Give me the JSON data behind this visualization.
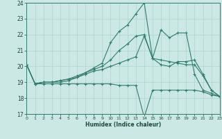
{
  "xlabel": "Humidex (Indice chaleur)",
  "xlim": [
    0,
    23
  ],
  "ylim": [
    17,
    24
  ],
  "yticks": [
    17,
    18,
    19,
    20,
    21,
    22,
    23,
    24
  ],
  "xticks": [
    0,
    1,
    2,
    3,
    4,
    5,
    6,
    7,
    8,
    9,
    10,
    11,
    12,
    13,
    14,
    15,
    16,
    17,
    18,
    19,
    20,
    21,
    22,
    23
  ],
  "bg_color": "#cce8e4",
  "grid_color": "#aad4cc",
  "line_color": "#2e7d6e",
  "lines": [
    {
      "x": [
        0,
        1,
        2,
        3,
        4,
        5,
        6,
        7,
        8,
        9,
        10,
        11,
        12,
        13,
        14,
        15,
        16,
        17,
        18,
        19,
        20,
        21,
        22,
        23
      ],
      "y": [
        20.1,
        18.9,
        19.0,
        19.0,
        19.0,
        19.1,
        19.3,
        19.6,
        19.9,
        20.2,
        21.5,
        22.2,
        22.6,
        23.3,
        24.0,
        20.5,
        20.1,
        20.0,
        20.3,
        20.3,
        20.4,
        19.5,
        18.5,
        18.1
      ]
    },
    {
      "x": [
        0,
        1,
        2,
        3,
        4,
        5,
        6,
        7,
        8,
        9,
        10,
        11,
        12,
        13,
        14,
        15,
        16,
        17,
        18,
        19,
        20,
        21,
        22,
        23
      ],
      "y": [
        20.1,
        18.9,
        19.0,
        19.0,
        19.1,
        19.2,
        19.4,
        19.6,
        19.8,
        20.0,
        20.4,
        21.0,
        21.4,
        21.9,
        22.0,
        20.5,
        22.3,
        21.8,
        22.1,
        22.1,
        19.5,
        18.5,
        18.3,
        18.1
      ]
    },
    {
      "x": [
        0,
        1,
        2,
        3,
        4,
        5,
        6,
        7,
        8,
        9,
        10,
        11,
        12,
        13,
        14,
        15,
        16,
        17,
        18,
        19,
        20,
        21,
        22,
        23
      ],
      "y": [
        20.1,
        18.9,
        19.0,
        19.0,
        19.1,
        19.2,
        19.3,
        19.5,
        19.7,
        19.8,
        20.0,
        20.2,
        20.4,
        20.6,
        21.9,
        20.5,
        20.4,
        20.3,
        20.2,
        20.1,
        20.1,
        19.4,
        18.5,
        18.1
      ]
    },
    {
      "x": [
        0,
        1,
        2,
        3,
        4,
        5,
        6,
        7,
        8,
        9,
        10,
        11,
        12,
        13,
        14,
        15,
        16,
        17,
        18,
        19,
        20,
        21,
        22,
        23
      ],
      "y": [
        20.1,
        18.9,
        18.9,
        18.9,
        18.9,
        18.9,
        18.9,
        18.9,
        18.9,
        18.9,
        18.9,
        18.8,
        18.8,
        18.8,
        16.8,
        18.5,
        18.5,
        18.5,
        18.5,
        18.5,
        18.5,
        18.4,
        18.2,
        18.1
      ]
    }
  ]
}
